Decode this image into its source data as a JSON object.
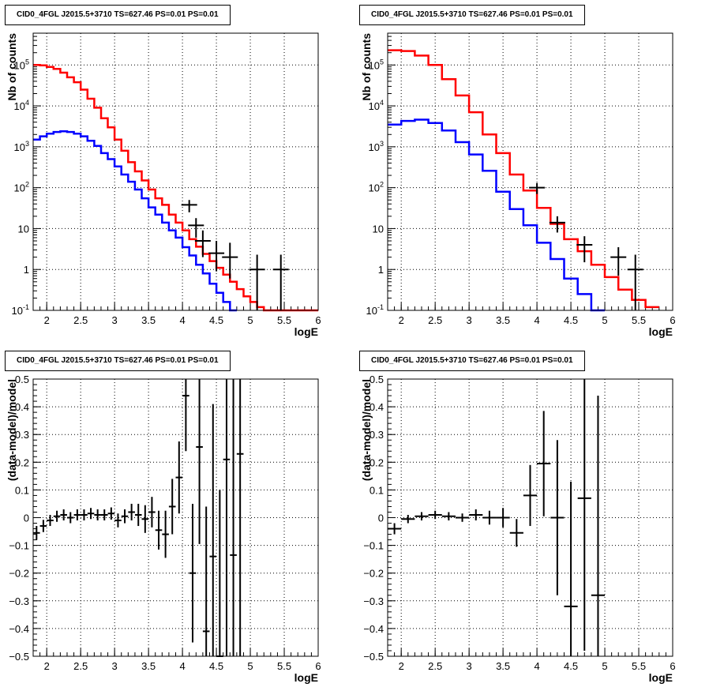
{
  "chart_data": [
    {
      "type": "line",
      "title": "CID0_4FGL J2015.5+3710 TS=627.46 PS=0.01 PS=0.01",
      "xlabel": "logE",
      "ylabel": "Nb of counts",
      "xlim": [
        1.8,
        6
      ],
      "ylim": [
        0.1,
        600000
      ],
      "yscale": "log",
      "grid": true,
      "x_ticks": [
        "2",
        "2.5",
        "3",
        "3.5",
        "4",
        "4.5",
        "5",
        "5.5",
        "6"
      ],
      "y_ticks": [
        {
          "base": "10",
          "exp": "-1"
        },
        {
          "base": "1",
          "exp": ""
        },
        {
          "base": "10",
          "exp": ""
        },
        {
          "base": "10",
          "exp": "2"
        },
        {
          "base": "10",
          "exp": "3"
        },
        {
          "base": "10",
          "exp": "4"
        },
        {
          "base": "10",
          "exp": "5"
        }
      ],
      "series": [
        {
          "color": "#ff0000",
          "edges": [
            1.8,
            1.9,
            2.0,
            2.1,
            2.2,
            2.3,
            2.4,
            2.5,
            2.6,
            2.7,
            2.8,
            2.9,
            3.0,
            3.1,
            3.2,
            3.3,
            3.4,
            3.5,
            3.6,
            3.7,
            3.8,
            3.9,
            4.0,
            4.1,
            4.2,
            4.3,
            4.4,
            4.5,
            4.6,
            4.7,
            4.8,
            4.9,
            5.0,
            5.1,
            5.2,
            5.3,
            5.4,
            5.5,
            5.6,
            6.0
          ],
          "values": [
            100000,
            98000,
            90000,
            80000,
            65000,
            50000,
            38000,
            25000,
            15000,
            9000,
            5000,
            3000,
            1500,
            800,
            420,
            250,
            150,
            90,
            55,
            38,
            22,
            14,
            9,
            5.5,
            3.6,
            2.4,
            1.6,
            1.1,
            0.75,
            0.5,
            0.33,
            0.22,
            0.16,
            0.12,
            0.1,
            0.1,
            0.1,
            0.1,
            0.1
          ]
        },
        {
          "color": "#0000ff",
          "edges": [
            1.8,
            1.9,
            2.0,
            2.1,
            2.2,
            2.3,
            2.4,
            2.5,
            2.6,
            2.7,
            2.8,
            2.9,
            3.0,
            3.1,
            3.2,
            3.3,
            3.4,
            3.5,
            3.6,
            3.7,
            3.8,
            3.9,
            4.0,
            4.1,
            4.2,
            4.3,
            4.4,
            4.5,
            4.6,
            4.7,
            4.8
          ],
          "values": [
            1500,
            1800,
            2100,
            2300,
            2400,
            2300,
            2100,
            1800,
            1400,
            1050,
            700,
            500,
            330,
            210,
            140,
            90,
            55,
            33,
            22,
            14,
            9,
            6,
            3.5,
            2.2,
            1.3,
            0.8,
            0.45,
            0.27,
            0.16,
            0.1
          ]
        }
      ],
      "points": {
        "color": "#000000",
        "x": [
          4.1,
          4.2,
          4.3,
          4.5,
          4.7,
          5.1,
          5.45
        ],
        "y": [
          38,
          12,
          5,
          2.5,
          2,
          1,
          1
        ],
        "ylo": [
          25,
          6,
          2,
          0.9,
          0.6,
          0.1,
          0.1
        ],
        "yhi": [
          50,
          18,
          9,
          5,
          4.5,
          2.3,
          2.3
        ]
      }
    },
    {
      "type": "line",
      "title": "CID0_4FGL J2015.5+3710 TS=627.46 PS=0.01 PS=0.01",
      "xlabel": "logE",
      "ylabel": "Nb of counts",
      "xlim": [
        1.8,
        6
      ],
      "ylim": [
        0.1,
        600000
      ],
      "yscale": "log",
      "grid": true,
      "x_ticks": [
        "2",
        "2.5",
        "3",
        "3.5",
        "4",
        "4.5",
        "5",
        "5.5",
        "6"
      ],
      "y_ticks": [
        {
          "base": "10",
          "exp": "-1"
        },
        {
          "base": "1",
          "exp": ""
        },
        {
          "base": "10",
          "exp": ""
        },
        {
          "base": "10",
          "exp": "2"
        },
        {
          "base": "10",
          "exp": "3"
        },
        {
          "base": "10",
          "exp": "4"
        },
        {
          "base": "10",
          "exp": "5"
        }
      ],
      "series": [
        {
          "color": "#ff0000",
          "edges": [
            1.8,
            2.0,
            2.2,
            2.4,
            2.6,
            2.8,
            3.0,
            3.2,
            3.4,
            3.6,
            3.8,
            4.0,
            4.2,
            4.4,
            4.6,
            4.8,
            5.0,
            5.2,
            5.4,
            5.6,
            5.8
          ],
          "values": [
            230000,
            220000,
            170000,
            100000,
            45000,
            18000,
            7000,
            2000,
            700,
            210,
            85,
            32,
            13,
            5.5,
            2.8,
            1.3,
            0.65,
            0.32,
            0.18,
            0.12
          ]
        },
        {
          "color": "#0000ff",
          "edges": [
            1.8,
            2.0,
            2.2,
            2.4,
            2.6,
            2.8,
            3.0,
            3.2,
            3.4,
            3.6,
            3.8,
            4.0,
            4.2,
            4.4,
            4.6,
            4.8,
            5.0
          ],
          "values": [
            3500,
            4300,
            4600,
            3800,
            2500,
            1300,
            650,
            260,
            80,
            30,
            12,
            4.5,
            1.8,
            0.6,
            0.25,
            0.1
          ]
        }
      ],
      "points": {
        "color": "#000000",
        "x": [
          4.0,
          4.3,
          4.7,
          5.2,
          5.45
        ],
        "y": [
          100,
          14,
          4,
          2,
          1
        ],
        "ylo": [
          70,
          8,
          1.5,
          0.7,
          0.1
        ],
        "yhi": [
          130,
          20,
          6.5,
          3.5,
          2.3
        ]
      }
    },
    {
      "type": "scatter",
      "title": "CID0_4FGL J2015.5+3710 TS=627.46 PS=0.01 PS=0.01",
      "xlabel": "logE",
      "ylabel": "(data-model)/model",
      "xlim": [
        1.8,
        6
      ],
      "ylim": [
        -0.5,
        0.5
      ],
      "grid": true,
      "x_ticks": [
        "2",
        "2.5",
        "3",
        "3.5",
        "4",
        "4.5",
        "5",
        "5.5",
        "6"
      ],
      "y_ticks": [
        "−0.5",
        "−0.4",
        "−0.3",
        "−0.2",
        "−0.1",
        "0",
        "0.1",
        "0.2",
        "0.3",
        "0.4",
        "0.5"
      ],
      "points": {
        "color": "#000000",
        "xhalf": 0.05,
        "x": [
          1.85,
          1.95,
          2.05,
          2.15,
          2.25,
          2.35,
          2.45,
          2.55,
          2.65,
          2.75,
          2.85,
          2.95,
          3.05,
          3.15,
          3.25,
          3.35,
          3.45,
          3.55,
          3.65,
          3.75,
          3.85,
          3.95,
          4.05,
          4.15,
          4.25,
          4.35,
          4.45,
          4.55,
          4.65,
          4.75,
          4.85
        ],
        "y": [
          -0.055,
          -0.03,
          -0.01,
          0.005,
          0.01,
          0.0,
          0.01,
          0.01,
          0.015,
          0.01,
          0.01,
          0.015,
          -0.01,
          0.005,
          0.02,
          0.01,
          -0.005,
          0.02,
          -0.045,
          -0.06,
          0.04,
          0.145,
          0.44,
          -0.2,
          0.255,
          -0.41,
          -0.14,
          -0.5,
          0.21,
          -0.135,
          0.23
        ],
        "err": [
          0.025,
          0.022,
          0.02,
          0.02,
          0.02,
          0.02,
          0.02,
          0.02,
          0.02,
          0.02,
          0.02,
          0.022,
          0.025,
          0.025,
          0.03,
          0.04,
          0.05,
          0.055,
          0.07,
          0.085,
          0.1,
          0.13,
          0.2,
          0.25,
          0.35,
          0.45,
          0.55,
          0.6,
          0.8,
          0.9,
          1.0
        ]
      }
    },
    {
      "type": "scatter",
      "title": "CID0_4FGL J2015.5+3710 TS=627.46 PS=0.01 PS=0.01",
      "xlabel": "logE",
      "ylabel": "(data-model)/model",
      "xlim": [
        1.8,
        6
      ],
      "ylim": [
        -0.5,
        0.5
      ],
      "grid": true,
      "x_ticks": [
        "2",
        "2.5",
        "3",
        "3.5",
        "4",
        "4.5",
        "5",
        "5.5",
        "6"
      ],
      "y_ticks": [
        "−0.5",
        "−0.4",
        "−0.3",
        "−0.2",
        "−0.1",
        "0",
        "0.1",
        "0.2",
        "0.3",
        "0.4",
        "0.5"
      ],
      "points": {
        "color": "#000000",
        "xhalf": 0.1,
        "x": [
          1.9,
          2.1,
          2.3,
          2.5,
          2.7,
          2.9,
          3.1,
          3.3,
          3.5,
          3.7,
          3.9,
          4.1,
          4.3,
          4.5,
          4.7,
          4.9
        ],
        "y": [
          -0.04,
          -0.005,
          0.005,
          0.01,
          0.005,
          0.0,
          0.01,
          0.0,
          0.0,
          -0.055,
          0.08,
          0.195,
          0.0,
          -0.32,
          0.07,
          -0.28
        ],
        "err": [
          0.02,
          0.015,
          0.015,
          0.015,
          0.015,
          0.015,
          0.02,
          0.025,
          0.035,
          0.05,
          0.11,
          0.19,
          0.28,
          0.45,
          0.55,
          0.72
        ]
      }
    }
  ]
}
